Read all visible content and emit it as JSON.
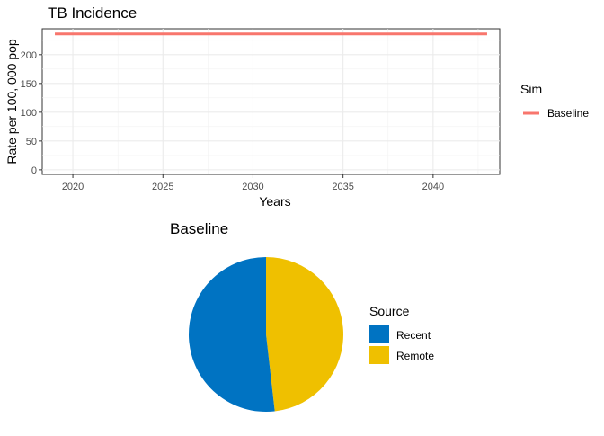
{
  "chart_data": [
    {
      "type": "line",
      "title": "TB Incidence",
      "xlabel": "Years",
      "ylabel": "Rate per 100, 000 pop",
      "xlim": [
        2018.3,
        2043.7
      ],
      "ylim": [
        -8,
        245
      ],
      "x_ticks": [
        2020,
        2025,
        2030,
        2035,
        2040
      ],
      "y_ticks": [
        0,
        50,
        100,
        150,
        200
      ],
      "grid": true,
      "legend": {
        "title": "Sim",
        "position": "right"
      },
      "series": [
        {
          "name": "Baseline",
          "color": "#F8766D",
          "x": [
            2019,
            2020,
            2025,
            2030,
            2035,
            2040,
            2043
          ],
          "y": [
            236,
            236,
            236,
            236,
            236,
            236,
            236
          ]
        }
      ]
    },
    {
      "type": "pie",
      "title": "Baseline",
      "legend": {
        "title": "Source",
        "position": "right"
      },
      "slices": [
        {
          "label": "Remote",
          "value": 48.2,
          "color": "#EFC000"
        },
        {
          "label": "Recent",
          "value": 51.8,
          "color": "#0073C2"
        }
      ]
    }
  ]
}
